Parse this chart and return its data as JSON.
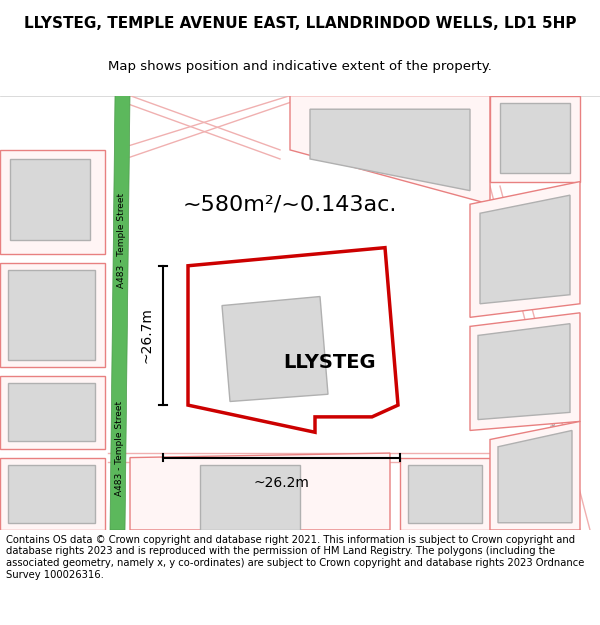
{
  "title_line1": "LLYSTEG, TEMPLE AVENUE EAST, LLANDRINDOD WELLS, LD1 5HP",
  "title_line2": "Map shows position and indicative extent of the property.",
  "footer_text": "Contains OS data © Crown copyright and database right 2021. This information is subject to Crown copyright and database rights 2023 and is reproduced with the permission of HM Land Registry. The polygons (including the associated geometry, namely x, y co-ordinates) are subject to Crown copyright and database rights 2023 Ordnance Survey 100026316.",
  "background_color": "#f5f5f0",
  "map_background": "#ffffff",
  "property_label": "LLYSTEG",
  "area_label": "~580m²/~0.143ac.",
  "width_label": "~26.2m",
  "height_label": "~26.7m",
  "street_label": "A483 - Temple Street",
  "street_color": "#5cb85c",
  "street_border_color": "#4a9a4a",
  "property_color": "#cc0000",
  "property_fill": "#ffffff",
  "building_fill": "#d8d8d8",
  "building_stroke": "#b0b0b0",
  "neighbor_stroke": "#e88080",
  "neighbor_fill": "#ffffff",
  "road_line_color": "#f0b0b0"
}
